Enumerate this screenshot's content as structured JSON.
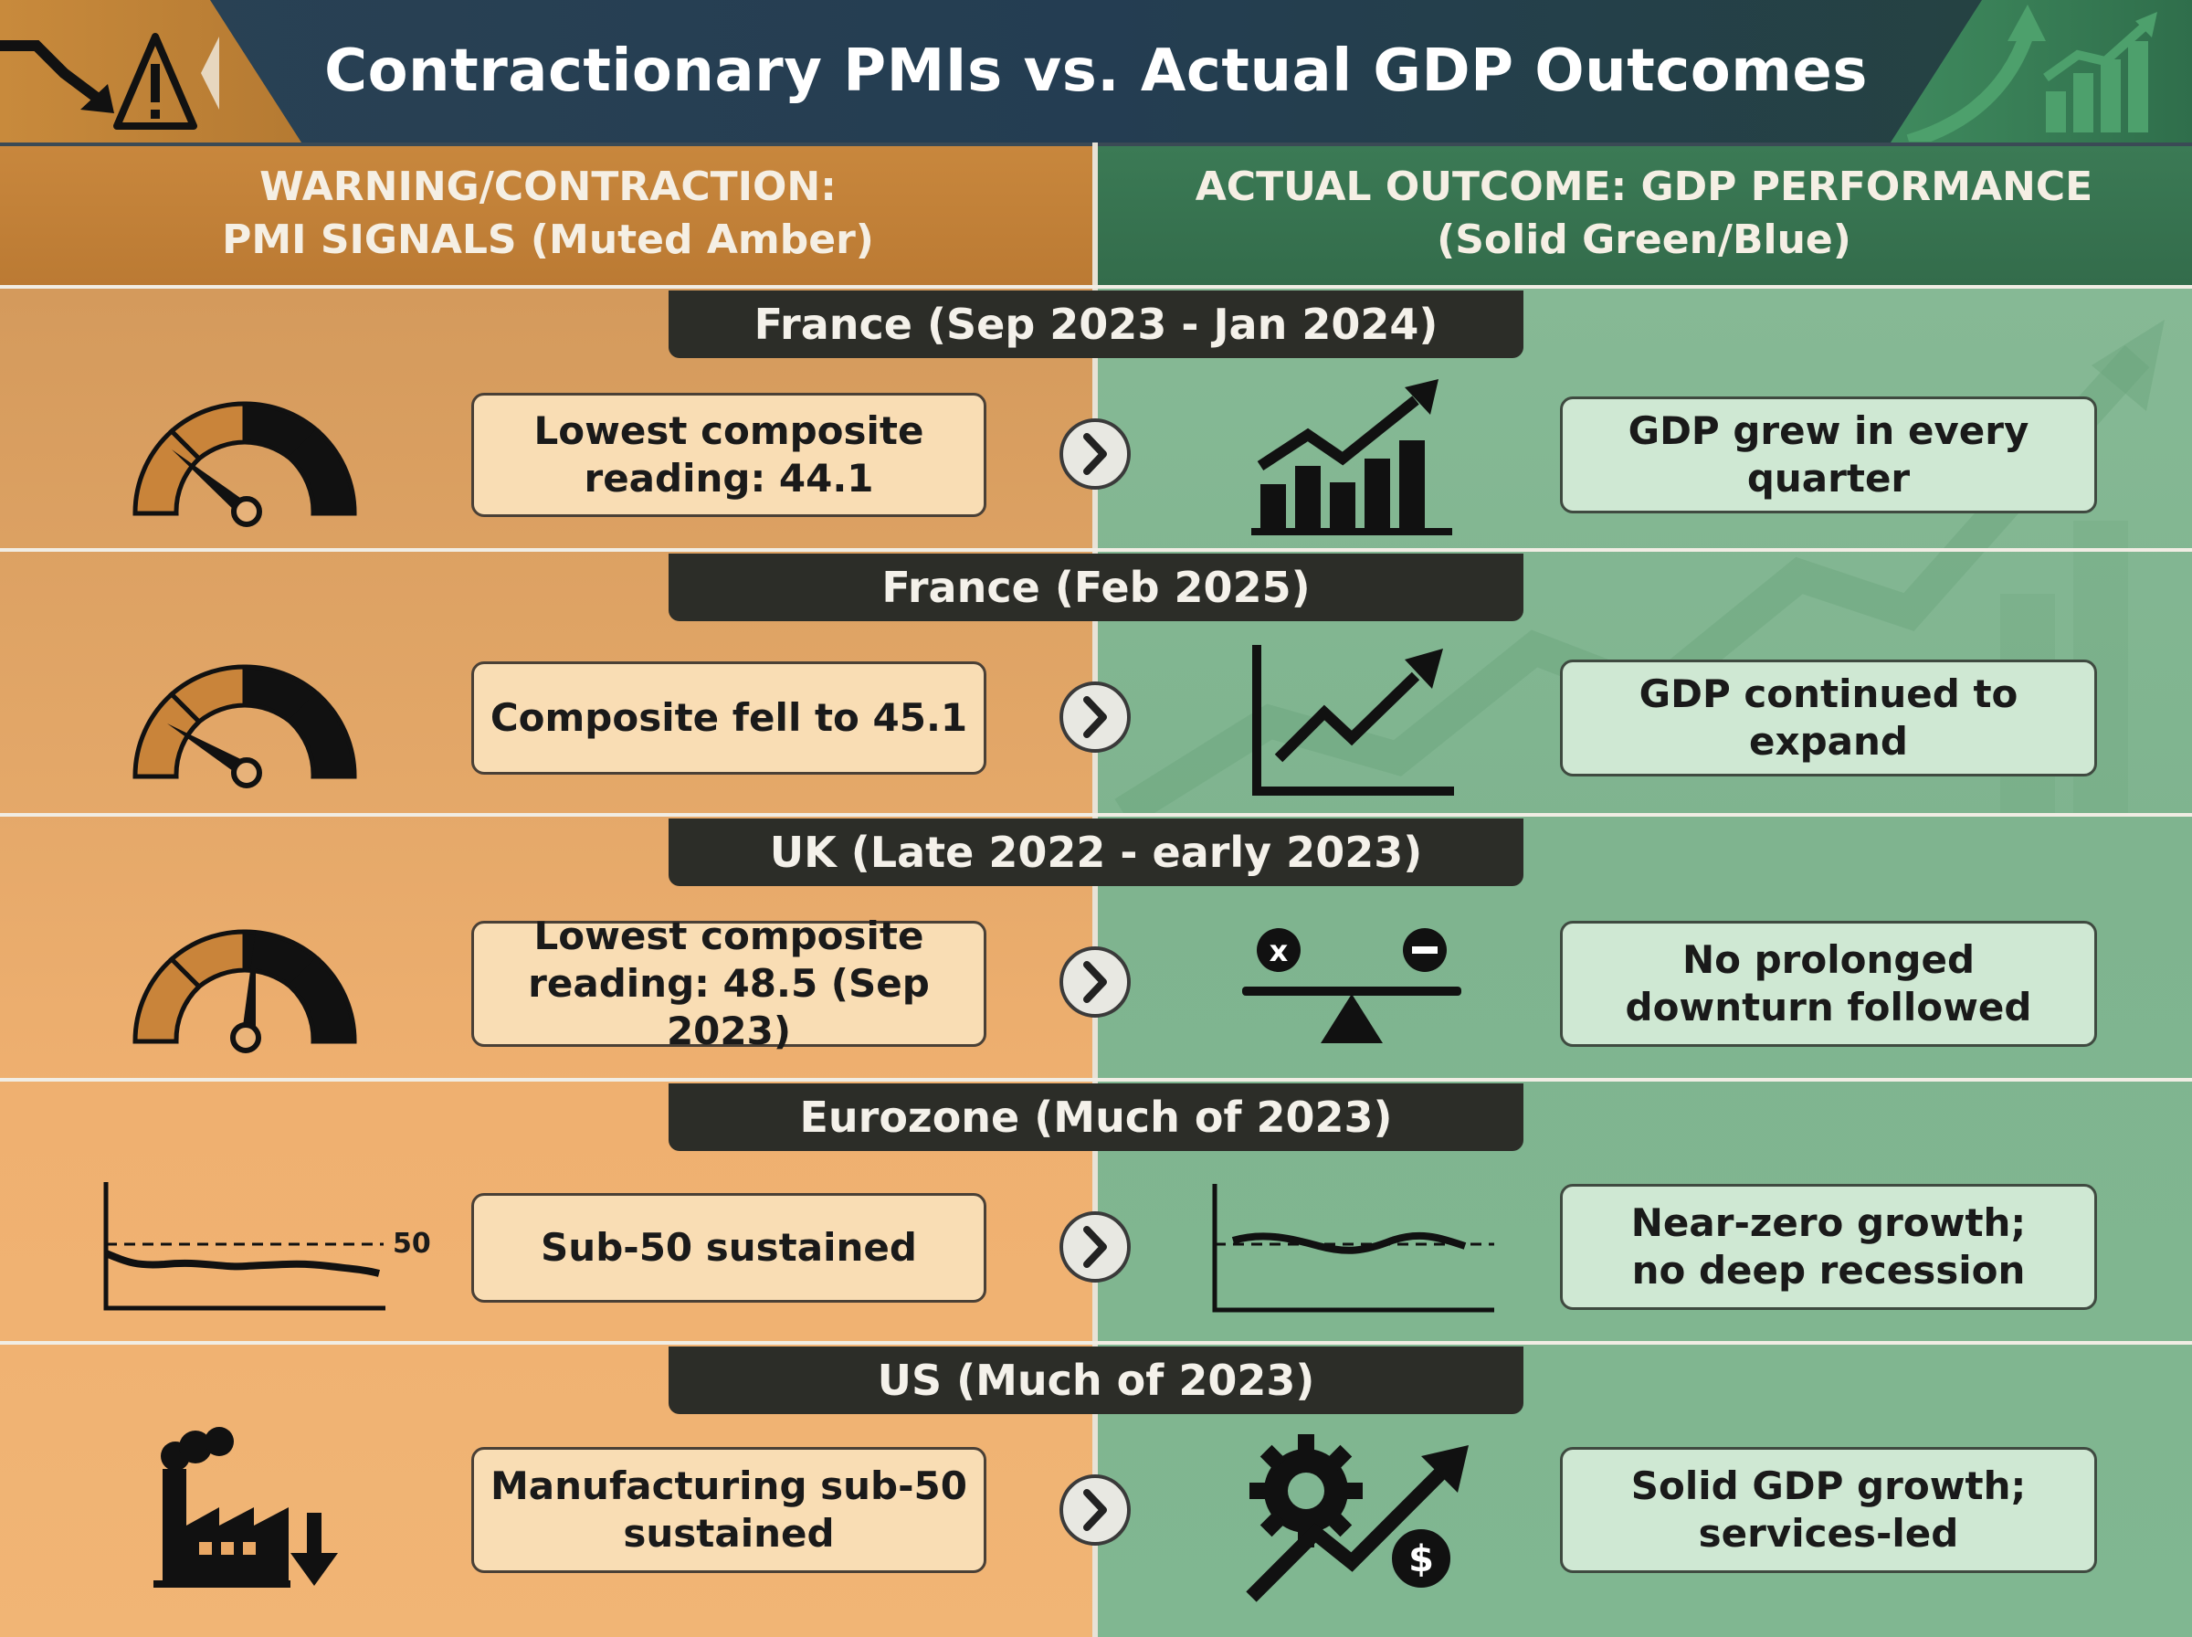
{
  "title": "Contractionary PMIs vs. Actual GDP Outcomes",
  "columns": {
    "left_header_line1": "WARNING/CONTRACTION:",
    "left_header_line2": "PMI SIGNALS (Muted Amber)",
    "right_header_line1": "ACTUAL OUTCOME: GDP PERFORMANCE",
    "right_header_line2": "(Solid Green/Blue)"
  },
  "colors": {
    "amber": "#e9a865",
    "green": "#80b692",
    "title_bg": "#243d52",
    "banner_bg": "#2c2d28"
  },
  "rows": [
    {
      "banner": "France (Sep 2023 - Jan 2024)",
      "pmi_icon": "gauge-low-icon",
      "pmi_line1": "Lowest composite",
      "pmi_line2": "reading: 44.1",
      "gdp_icon": "bar-chart-up-icon",
      "gdp_line1": "GDP grew in every quarter",
      "gdp_line2": ""
    },
    {
      "banner": "France (Feb 2025)",
      "pmi_icon": "gauge-low-icon",
      "pmi_line1": "Composite fell to 45.1",
      "pmi_line2": "",
      "gdp_icon": "line-chart-up-icon",
      "gdp_line1": "GDP continued to expand",
      "gdp_line2": ""
    },
    {
      "banner": "UK (Late 2022 - early 2023)",
      "pmi_icon": "gauge-mid-icon",
      "pmi_line1": "Lowest composite",
      "pmi_line2": "reading: 48.5 (Sep 2023)",
      "gdp_icon": "balance-scale-icon",
      "gdp_line1": "No prolonged",
      "gdp_line2": "downturn followed"
    },
    {
      "banner": "Eurozone (Much of 2023)",
      "pmi_icon": "sub-50-line-chart-icon",
      "pmi_line1": "Sub-50 sustained",
      "pmi_line2": "",
      "pmi_chart_label": "50",
      "gdp_icon": "flat-line-chart-icon",
      "gdp_line1": "Near-zero growth;",
      "gdp_line2": "no deep recession"
    },
    {
      "banner": "US (Much of 2023)",
      "pmi_icon": "factory-down-icon",
      "pmi_line1": "Manufacturing sub-50",
      "pmi_line2": "sustained",
      "gdp_icon": "gear-growth-dollar-icon",
      "gdp_line1": "Solid GDP growth;",
      "gdp_line2": "services-led"
    }
  ]
}
